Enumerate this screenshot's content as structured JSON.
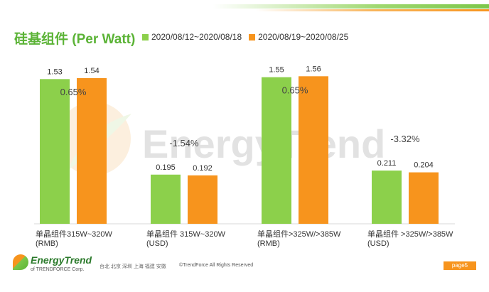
{
  "title": "硅基组件 (Per Watt)",
  "legend": [
    {
      "label": "2020/08/12~2020/08/18",
      "color": "#8cd04b"
    },
    {
      "label": "2020/08/19~2020/08/25",
      "color": "#f7941d"
    }
  ],
  "watermark": "EnergyTrend",
  "chart_data": {
    "type": "bar",
    "groups": [
      {
        "label_line1": "单晶组件315W~320W",
        "label_line2": "(RMB)",
        "values": [
          1.53,
          1.54
        ],
        "value_labels": [
          "1.53",
          "1.54"
        ],
        "change": "0.65%",
        "scale_max": 1.6
      },
      {
        "label_line1": "单晶组件 315W~320W",
        "label_line2": "(USD)",
        "values": [
          0.195,
          0.192
        ],
        "value_labels": [
          "0.195",
          "0.192"
        ],
        "change": "-1.54%",
        "scale_max": 1.6
      },
      {
        "label_line1": "单晶组件>325W/>385W",
        "label_line2": "(RMB)",
        "values": [
          1.55,
          1.56
        ],
        "value_labels": [
          "1.55",
          "1.56"
        ],
        "change": "0.65%",
        "scale_max": 1.6
      },
      {
        "label_line1": "单晶组件 >325W/>385W",
        "label_line2": "(USD)",
        "values": [
          0.211,
          0.204
        ],
        "value_labels": [
          "0.211",
          "0.204"
        ],
        "change": "-3.32%",
        "scale_max": 1.6
      }
    ],
    "series": [
      {
        "name": "2020/08/12~2020/08/18",
        "color": "#8cd04b"
      },
      {
        "name": "2020/08/19~2020/08/25",
        "color": "#f7941d"
      }
    ]
  },
  "footer": {
    "logo_name": "EnergyTrend",
    "logo_sub": "of TRENDFORCE Corp.",
    "cities": "台北  北京  深圳  上海  福建  安徽",
    "copyright": "©TrendForce All Rights Reserved",
    "page": "page5"
  }
}
